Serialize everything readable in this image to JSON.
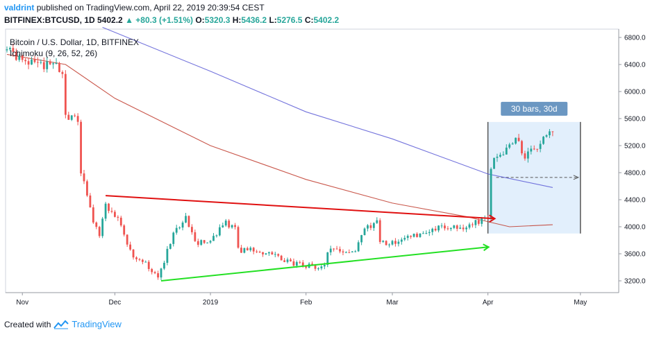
{
  "header": {
    "author": "valdrint",
    "published_text": "published on TradingView.com, April 22, 2019 20:39:54 CEST",
    "symbol": "BITFINEX:BTCUSD, 1D",
    "last": "5402.2",
    "change": "▲ +80.3 (+1.51%)",
    "o_label": "O:",
    "o_value": "5320.3",
    "h_label": "H:",
    "h_value": "5436.2",
    "l_label": "L:",
    "l_value": "5276.5",
    "c_label": "C:",
    "c_value": "5402.2"
  },
  "footer": {
    "created_with": "Created with",
    "brand": "TradingView"
  },
  "colors": {
    "up": "#26a69a",
    "down": "#ef5350",
    "ma_fast": "#c0392b",
    "ma_slow": "#5b5bd6",
    "resistance": "#e01010",
    "support": "#22e022",
    "measure_box": "#d8e9fb",
    "measure_label_bg": "#6b97c2"
  },
  "chart_data": {
    "type": "candlestick",
    "title": "Bitcoin / U.S. Dollar, 1D, BITFINEX",
    "indicator_label": "Ichimoku (9, 26, 52, 26)",
    "y_axis": {
      "min": 3000,
      "max": 6900,
      "ticks": [
        "3200.0",
        "3600.0",
        "4000.0",
        "4400.0",
        "4800.0",
        "5200.0",
        "5600.0",
        "6000.0",
        "6400.0",
        "6800.0"
      ],
      "position": "right"
    },
    "x_axis": {
      "start": "2018-10-27",
      "end": "2019-05-05",
      "ticks": [
        {
          "label": "Nov",
          "date": "2018-11-01"
        },
        {
          "label": "Dec",
          "date": "2018-12-01"
        },
        {
          "label": "2019",
          "date": "2019-01-01"
        },
        {
          "label": "Feb",
          "date": "2019-02-01"
        },
        {
          "label": "Mar",
          "date": "2019-03-01"
        },
        {
          "label": "Apr",
          "date": "2019-04-01"
        },
        {
          "label": "May",
          "date": "2019-05-01"
        }
      ]
    },
    "anchors": [
      [
        "2018-10-27",
        6600
      ],
      [
        "2018-11-05",
        6400
      ],
      [
        "2018-11-12",
        6380
      ],
      [
        "2018-11-14",
        6250
      ],
      [
        "2018-11-15",
        5600
      ],
      [
        "2018-11-19",
        5600
      ],
      [
        "2018-11-20",
        4800
      ],
      [
        "2018-11-24",
        4100
      ],
      [
        "2018-11-26",
        3900
      ],
      [
        "2018-11-28",
        4300
      ],
      [
        "2018-12-02",
        4150
      ],
      [
        "2018-12-04",
        3850
      ],
      [
        "2018-12-07",
        3550
      ],
      [
        "2018-12-11",
        3450
      ],
      [
        "2018-12-15",
        3250
      ],
      [
        "2018-12-17",
        3500
      ],
      [
        "2018-12-20",
        3900
      ],
      [
        "2018-12-24",
        4150
      ],
      [
        "2018-12-27",
        3750
      ],
      [
        "2019-01-01",
        3800
      ],
      [
        "2019-01-06",
        4050
      ],
      [
        "2019-01-09",
        4000
      ],
      [
        "2019-01-10",
        3650
      ],
      [
        "2019-01-14",
        3650
      ],
      [
        "2019-01-20",
        3600
      ],
      [
        "2019-01-28",
        3450
      ],
      [
        "2019-02-07",
        3400
      ],
      [
        "2019-02-08",
        3650
      ],
      [
        "2019-02-17",
        3650
      ],
      [
        "2019-02-19",
        3900
      ],
      [
        "2019-02-24",
        4100
      ],
      [
        "2019-02-25",
        3750
      ],
      [
        "2019-03-04",
        3800
      ],
      [
        "2019-03-10",
        3900
      ],
      [
        "2019-03-17",
        4000
      ],
      [
        "2019-03-24",
        4000
      ],
      [
        "2019-03-30",
        4100
      ],
      [
        "2019-04-01",
        4150
      ],
      [
        "2019-04-02",
        4900
      ],
      [
        "2019-04-03",
        5000
      ],
      [
        "2019-04-08",
        5200
      ],
      [
        "2019-04-10",
        5300
      ],
      [
        "2019-04-13",
        5050
      ],
      [
        "2019-04-17",
        5200
      ],
      [
        "2019-04-22",
        5402.2
      ]
    ],
    "series": [
      {
        "name": "fast average",
        "values": [
          [
            "2018-10-27",
            6550
          ],
          [
            "2018-11-15",
            6400
          ],
          [
            "2018-12-01",
            5900
          ],
          [
            "2019-01-01",
            5200
          ],
          [
            "2019-02-01",
            4700
          ],
          [
            "2019-03-01",
            4350
          ],
          [
            "2019-03-25",
            4150
          ],
          [
            "2019-04-08",
            4000
          ],
          [
            "2019-04-22",
            4030
          ]
        ]
      },
      {
        "name": "slow average",
        "values": [
          [
            "2018-11-27",
            6950
          ],
          [
            "2019-01-01",
            6300
          ],
          [
            "2019-02-01",
            5700
          ],
          [
            "2019-03-01",
            5300
          ],
          [
            "2019-04-01",
            4780
          ],
          [
            "2019-04-22",
            4580
          ]
        ]
      }
    ],
    "annotations": {
      "resistance": {
        "from": [
          "2018-11-28",
          4460
        ],
        "to": [
          "2019-04-03",
          4120
        ]
      },
      "support": {
        "from": [
          "2018-12-16",
          3200
        ],
        "to": [
          "2019-04-01",
          3700
        ]
      },
      "measure": {
        "from_date": "2019-04-01",
        "to_date": "2019-05-01",
        "low": 3900,
        "high": 5550,
        "mid": 4730,
        "label": "30 bars, 30d"
      }
    }
  }
}
